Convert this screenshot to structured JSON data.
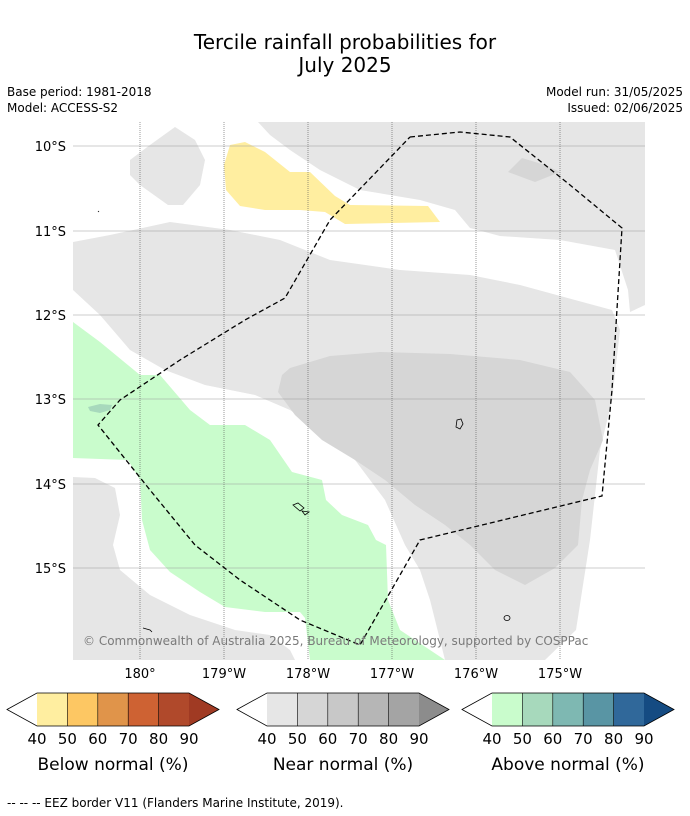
{
  "title_line1": "Tercile rainfall probabilities for",
  "title_line2": "July 2025",
  "meta": {
    "base_period": "Base period: 1981-2018",
    "model": "Model: ACCESS-S2",
    "model_run": "Model run: 31/05/2025",
    "issued": "Issued: 02/06/2025"
  },
  "map": {
    "lat_labels": [
      "10°S",
      "11°S",
      "12°S",
      "13°S",
      "14°S",
      "15°S"
    ],
    "lon_labels": [
      "180°",
      "179°W",
      "178°W",
      "177°W",
      "176°W",
      "175°W"
    ],
    "copyright": "© Commonwealth of Australia 2025, Bureau of Meteorology, supported by COSPPac"
  },
  "colorbars": [
    {
      "label": "Below normal (%)",
      "ticks": [
        "40",
        "50",
        "60",
        "70",
        "80",
        "90"
      ],
      "colors": [
        "#ffeea0",
        "#fdc763",
        "#e0944a",
        "#ce6233",
        "#b0492b",
        "#a03a23"
      ]
    },
    {
      "label": "Near normal (%)",
      "ticks": [
        "40",
        "50",
        "60",
        "70",
        "80",
        "90"
      ],
      "colors": [
        "#e6e6e6",
        "#d6d6d6",
        "#c8c8c8",
        "#b6b6b6",
        "#a4a4a4",
        "#8c8c8c"
      ]
    },
    {
      "label": "Above normal (%)",
      "ticks": [
        "40",
        "50",
        "60",
        "70",
        "80",
        "90"
      ],
      "colors": [
        "#c9fccc",
        "#a7d9bc",
        "#7eb8b2",
        "#5995a4",
        "#30689a",
        "#154b82"
      ]
    }
  ],
  "footer": "--  --  -- EEZ border V11 (Flanders Marine Institute, 2019).",
  "colors": {
    "near_normal_40": "#e6e6e6",
    "near_normal_50": "#d6d6d6",
    "below_normal_40": "#ffeea0",
    "above_normal_40": "#c9fccc",
    "above_normal_50": "#a7d9bc"
  }
}
